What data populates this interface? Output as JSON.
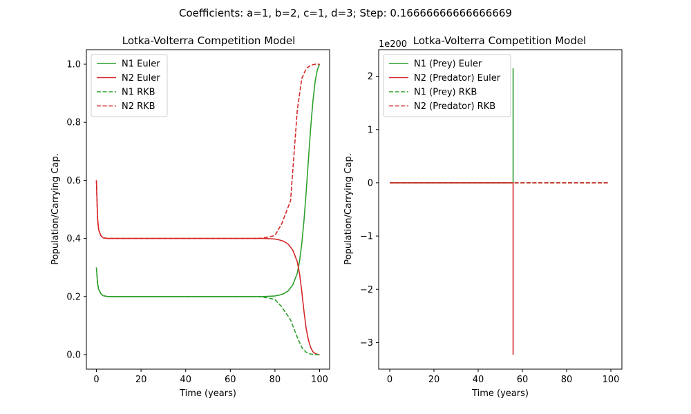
{
  "figure": {
    "suptitle": "Coefficients: a=1, b=2, c=1, d=3; Step: 0.16666666666666669"
  },
  "chart_data": [
    {
      "type": "line",
      "title": "Lotka-Volterra Competition Model",
      "xlabel": "Time (years)",
      "ylabel": "Population/Carrying Cap.",
      "xlim": [
        -4.5,
        104.5
      ],
      "ylim": [
        -0.05,
        1.05
      ],
      "xticks": [
        0,
        20,
        40,
        60,
        80,
        100
      ],
      "yticks": [
        0.0,
        0.2,
        0.4,
        0.6,
        0.8,
        1.0
      ],
      "ytick_labels": [
        "0.0",
        "0.2",
        "0.4",
        "0.6",
        "0.8",
        "1.0"
      ],
      "legend_position": "top-left",
      "series": [
        {
          "name": "N1 Euler",
          "color": "#2ca02c",
          "style": "solid",
          "x": [
            0,
            0.5,
            1,
            2,
            3,
            5,
            10,
            20,
            40,
            60,
            70,
            75,
            78,
            80,
            82,
            84,
            86,
            88,
            90,
            91,
            92,
            93,
            94,
            95,
            96,
            97,
            98,
            99,
            100
          ],
          "y": [
            0.3,
            0.245,
            0.225,
            0.21,
            0.203,
            0.2,
            0.2,
            0.2,
            0.2,
            0.2,
            0.2,
            0.2,
            0.201,
            0.202,
            0.205,
            0.21,
            0.22,
            0.24,
            0.28,
            0.32,
            0.38,
            0.46,
            0.56,
            0.67,
            0.78,
            0.87,
            0.94,
            0.98,
            1.0
          ]
        },
        {
          "name": "N2 Euler",
          "color": "#d62728",
          "style": "solid",
          "x": [
            0,
            0.5,
            1,
            2,
            3,
            5,
            10,
            20,
            40,
            60,
            70,
            75,
            78,
            80,
            82,
            84,
            86,
            88,
            90,
            91,
            92,
            93,
            94,
            95,
            96,
            97,
            98,
            99,
            100
          ],
          "y": [
            0.6,
            0.47,
            0.43,
            0.41,
            0.402,
            0.4,
            0.4,
            0.4,
            0.4,
            0.4,
            0.4,
            0.4,
            0.399,
            0.398,
            0.395,
            0.39,
            0.38,
            0.36,
            0.32,
            0.28,
            0.22,
            0.15,
            0.09,
            0.05,
            0.025,
            0.01,
            0.004,
            0.001,
            0.0
          ]
        },
        {
          "name": "N1 RKB",
          "color": "#2ca02c",
          "style": "dashed",
          "x": [
            0,
            0.5,
            1,
            2,
            3,
            5,
            10,
            20,
            40,
            60,
            70,
            74,
            77,
            80,
            83,
            87,
            90,
            92,
            94,
            96,
            98,
            100
          ],
          "y": [
            0.3,
            0.25,
            0.225,
            0.21,
            0.203,
            0.2,
            0.2,
            0.2,
            0.2,
            0.2,
            0.2,
            0.199,
            0.195,
            0.19,
            0.165,
            0.12,
            0.06,
            0.025,
            0.008,
            0.002,
            0.0,
            0.0
          ]
        },
        {
          "name": "N2 RKB",
          "color": "#d62728",
          "style": "dashed",
          "x": [
            0,
            0.5,
            1,
            2,
            3,
            5,
            10,
            20,
            40,
            60,
            70,
            74,
            77,
            80,
            83,
            87,
            90,
            92,
            94,
            96,
            98,
            100
          ],
          "y": [
            0.6,
            0.47,
            0.43,
            0.41,
            0.402,
            0.4,
            0.4,
            0.4,
            0.4,
            0.4,
            0.4,
            0.401,
            0.405,
            0.41,
            0.45,
            0.53,
            0.84,
            0.95,
            0.985,
            0.996,
            1.0,
            1.0
          ]
        }
      ]
    },
    {
      "type": "line",
      "title": "Lotka-Volterra Competition Model",
      "xlabel": "Time (years)",
      "ylabel": "Population/Carrying Cap.",
      "offset_text": "1e200",
      "xlim": [
        -5,
        105
      ],
      "ylim": [
        -3.5,
        2.5
      ],
      "xticks": [
        0,
        20,
        40,
        60,
        80,
        100
      ],
      "yticks": [
        -3,
        -2,
        -1,
        0,
        1,
        2
      ],
      "ytick_labels": [
        "−3",
        "−2",
        "−1",
        "0",
        "1",
        "2"
      ],
      "legend_position": "top-left",
      "series": [
        {
          "name": "N1 (Prey) Euler",
          "color": "#2ca02c",
          "style": "solid",
          "x": [
            0,
            55.5,
            55.8,
            55.8
          ],
          "y": [
            0,
            0,
            0,
            2.15
          ]
        },
        {
          "name": "N2 (Predator) Euler",
          "color": "#d62728",
          "style": "solid",
          "x": [
            0,
            55.5,
            55.8,
            55.8
          ],
          "y": [
            0,
            0,
            0,
            -3.23
          ]
        },
        {
          "name": "N1 (Prey) RKB",
          "color": "#2ca02c",
          "style": "dashed",
          "x": [
            0,
            99.3
          ],
          "y": [
            0,
            0
          ]
        },
        {
          "name": "N2 (Predator) RKB",
          "color": "#d62728",
          "style": "dashed",
          "x": [
            0,
            99.3
          ],
          "y": [
            0,
            0
          ]
        }
      ]
    }
  ]
}
